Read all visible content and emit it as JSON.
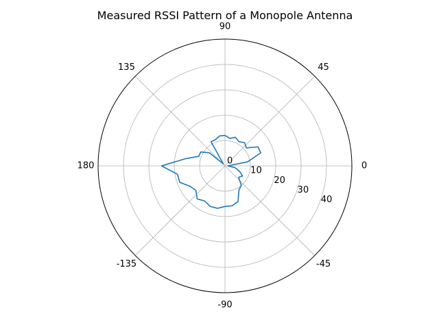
{
  "chart_data": {
    "type": "line",
    "projection": "polar",
    "title": "Measured RSSI Pattern of a Monopole Antenna",
    "angle_unit": "degrees",
    "angle_ticks": [
      "0",
      "45",
      "90",
      "135",
      "180",
      "-135",
      "-90",
      "-45"
    ],
    "angle_tick_values": [
      0,
      45,
      90,
      135,
      180,
      -135,
      -90,
      -45
    ],
    "radial_ticks": [
      "0",
      "10",
      "20",
      "30",
      "40"
    ],
    "radial_tick_values": [
      0,
      10,
      20,
      30,
      40
    ],
    "rlim": [
      0,
      50
    ],
    "radial_label_angle_deg": -22.5,
    "grid": true,
    "line_color": "#1f77b4",
    "series": [
      {
        "theta": [
          0,
          10,
          20,
          30,
          40,
          50,
          60,
          70,
          80,
          90,
          100,
          110,
          120,
          130,
          140,
          150,
          160,
          170,
          180,
          190,
          200,
          210,
          220,
          230,
          240,
          250,
          260,
          270,
          280,
          290,
          300,
          310,
          320,
          330,
          340,
          350,
          360
        ],
        "r": [
          1,
          9,
          15,
          15,
          11,
          12,
          11,
          12,
          11,
          12,
          12,
          11,
          11,
          1,
          8,
          11,
          11,
          16,
          25,
          19,
          19,
          16,
          15,
          17,
          16,
          17,
          17,
          16,
          16,
          15,
          11,
          10,
          7,
          8,
          6,
          4,
          1
        ]
      }
    ]
  }
}
